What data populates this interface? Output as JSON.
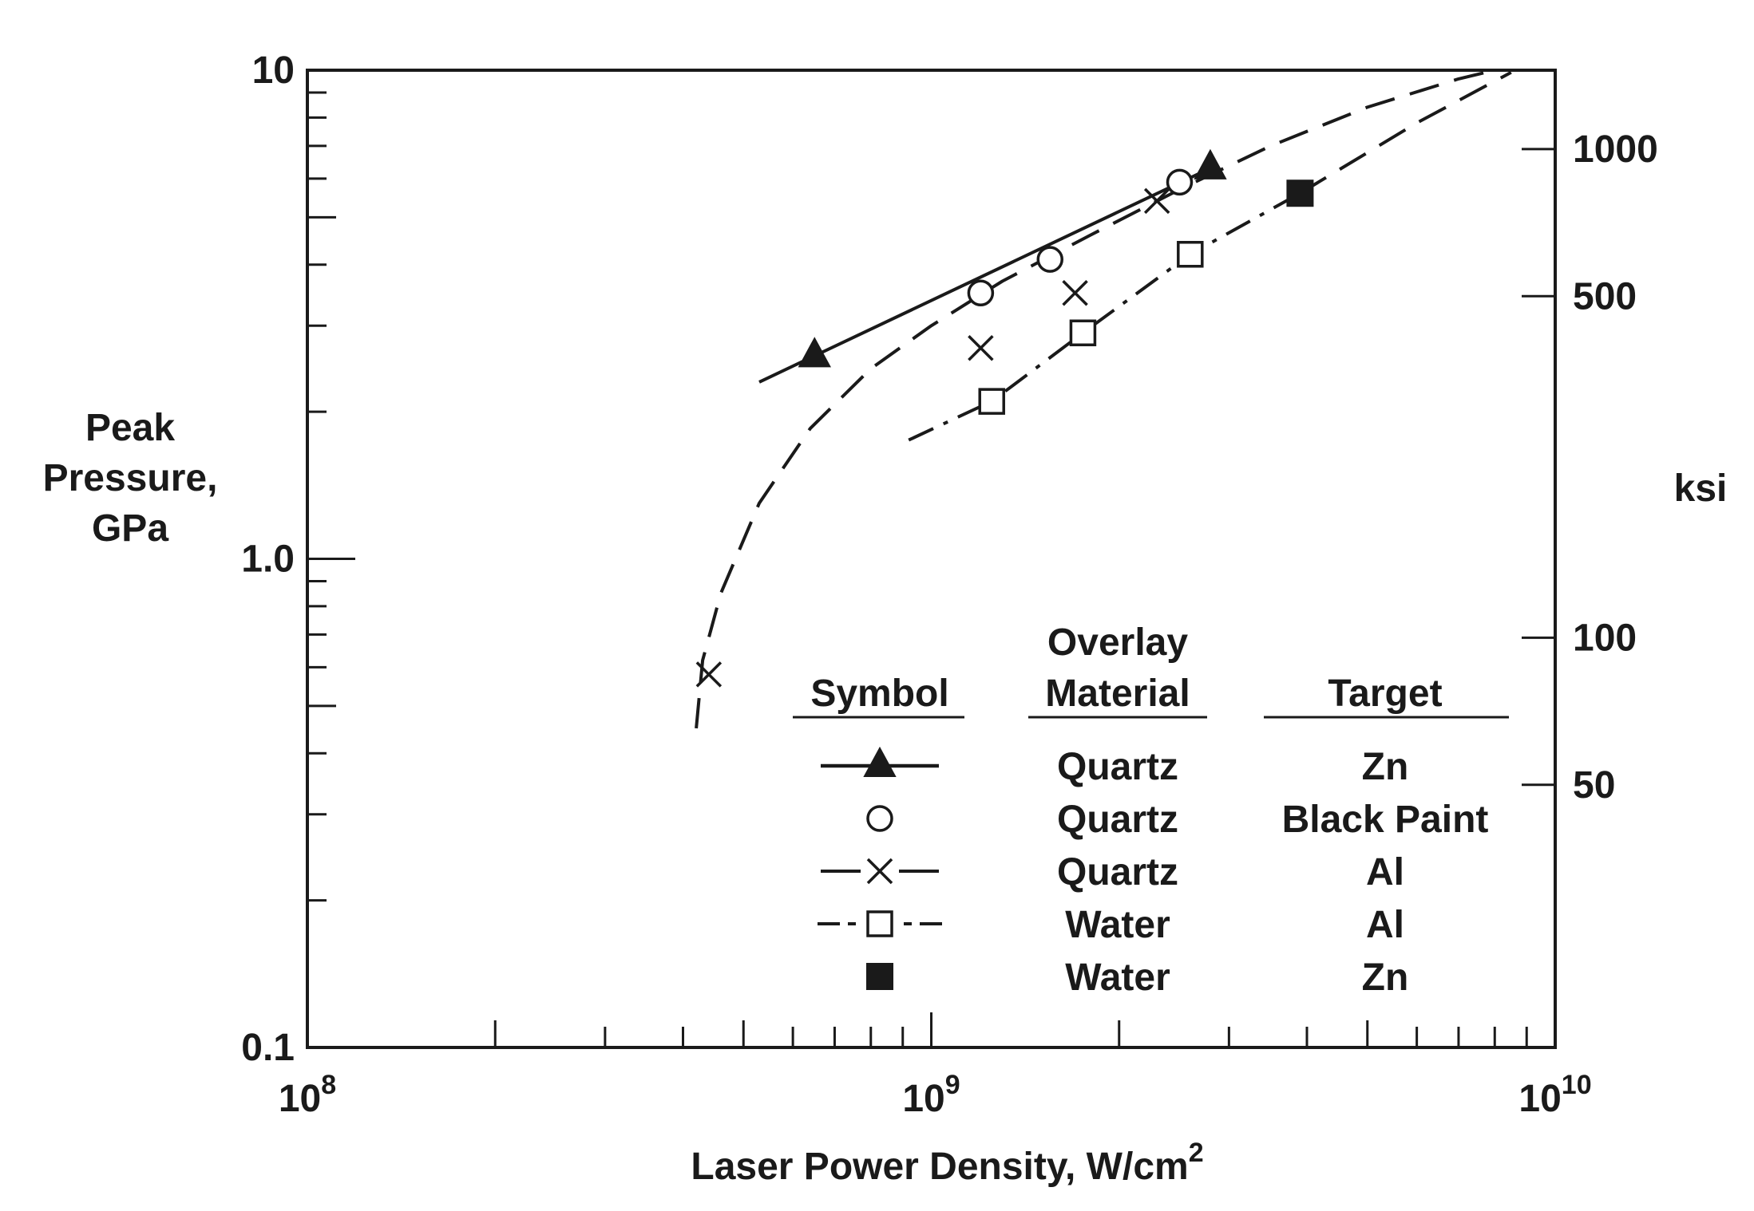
{
  "chart_data": {
    "type": "line",
    "xlabel": "Laser Power Density, W/cm",
    "xlabel_sup": "2",
    "ylabel_lines": [
      "Peak",
      "Pressure,",
      "GPa"
    ],
    "y2label": "ksi",
    "x_scale": "log",
    "y_scale": "log",
    "xlim": [
      100000000,
      10000000000
    ],
    "ylim": [
      0.1,
      10
    ],
    "x_ticks": [
      {
        "value": 100000000,
        "base": "10",
        "exp": "8"
      },
      {
        "value": 1000000000,
        "base": "10",
        "exp": "9"
      },
      {
        "value": 10000000000,
        "base": "10",
        "exp": "10"
      }
    ],
    "y_ticks": [
      {
        "value": 0.1,
        "label": "0.1"
      },
      {
        "value": 1,
        "label": "1.0"
      },
      {
        "value": 10,
        "label": "10"
      }
    ],
    "y2_ticks": [
      {
        "value": 50,
        "label": "50"
      },
      {
        "value": 100,
        "label": "100"
      },
      {
        "value": 500,
        "label": "500"
      },
      {
        "value": 1000,
        "label": "1000"
      }
    ],
    "y2_conversion_gpa_per_ksi": 0.006895,
    "grid": false,
    "legend": {
      "placement": "lower-right",
      "headers": [
        "Symbol",
        "Overlay\nMaterial",
        "Target"
      ],
      "rows": [
        {
          "material": "Quartz",
          "target": "Zn",
          "series": 0
        },
        {
          "material": "Quartz",
          "target": "Black Paint",
          "series": 1
        },
        {
          "material": "Quartz",
          "target": "Al",
          "series": 2
        },
        {
          "material": "Water",
          "target": "Al",
          "series": 3
        },
        {
          "material": "Water",
          "target": "Zn",
          "series": 4
        }
      ]
    },
    "series": [
      {
        "marker": "filled-triangle",
        "line": "solid",
        "points": [
          [
            650000000,
            2.6
          ],
          [
            2800000000,
            6.3
          ]
        ],
        "curve": [
          [
            530000000,
            2.3
          ],
          [
            2800000000,
            6.3
          ]
        ]
      },
      {
        "marker": "open-circle",
        "line": "solid",
        "points": [
          [
            1200000000,
            3.5
          ],
          [
            1550000000,
            4.1
          ],
          [
            2500000000,
            5.9
          ]
        ],
        "curve": []
      },
      {
        "marker": "x",
        "line": "dashed",
        "points": [
          [
            440000000,
            0.58
          ],
          [
            1200000000,
            2.7
          ],
          [
            1700000000,
            3.5
          ],
          [
            2300000000,
            5.4
          ]
        ],
        "curve": [
          [
            420000000,
            0.45
          ],
          [
            430000000,
            0.62
          ],
          [
            460000000,
            0.85
          ],
          [
            530000000,
            1.3
          ],
          [
            640000000,
            1.85
          ],
          [
            800000000,
            2.45
          ],
          [
            1000000000,
            3.0
          ],
          [
            1300000000,
            3.7
          ],
          [
            1800000000,
            4.6
          ],
          [
            2500000000,
            5.7
          ],
          [
            3500000000,
            7.0
          ],
          [
            5000000000,
            8.4
          ],
          [
            7000000000,
            9.6
          ],
          [
            8000000000,
            10
          ]
        ]
      },
      {
        "marker": "open-square",
        "line": "dash-dot",
        "points": [
          [
            1250000000,
            2.1
          ],
          [
            1750000000,
            2.9
          ],
          [
            2600000000,
            4.2
          ]
        ],
        "curve": [
          [
            920000000,
            1.75
          ],
          [
            1250000000,
            2.1
          ],
          [
            1750000000,
            2.9
          ],
          [
            2600000000,
            4.2
          ],
          [
            3900000000,
            5.6
          ]
        ]
      },
      {
        "marker": "filled-square",
        "line": "dashed",
        "points": [
          [
            3900000000,
            5.6
          ]
        ],
        "curve": [
          [
            3900000000,
            5.6
          ],
          [
            6000000000,
            7.8
          ],
          [
            8500000000,
            9.9
          ]
        ]
      }
    ],
    "title": ""
  }
}
